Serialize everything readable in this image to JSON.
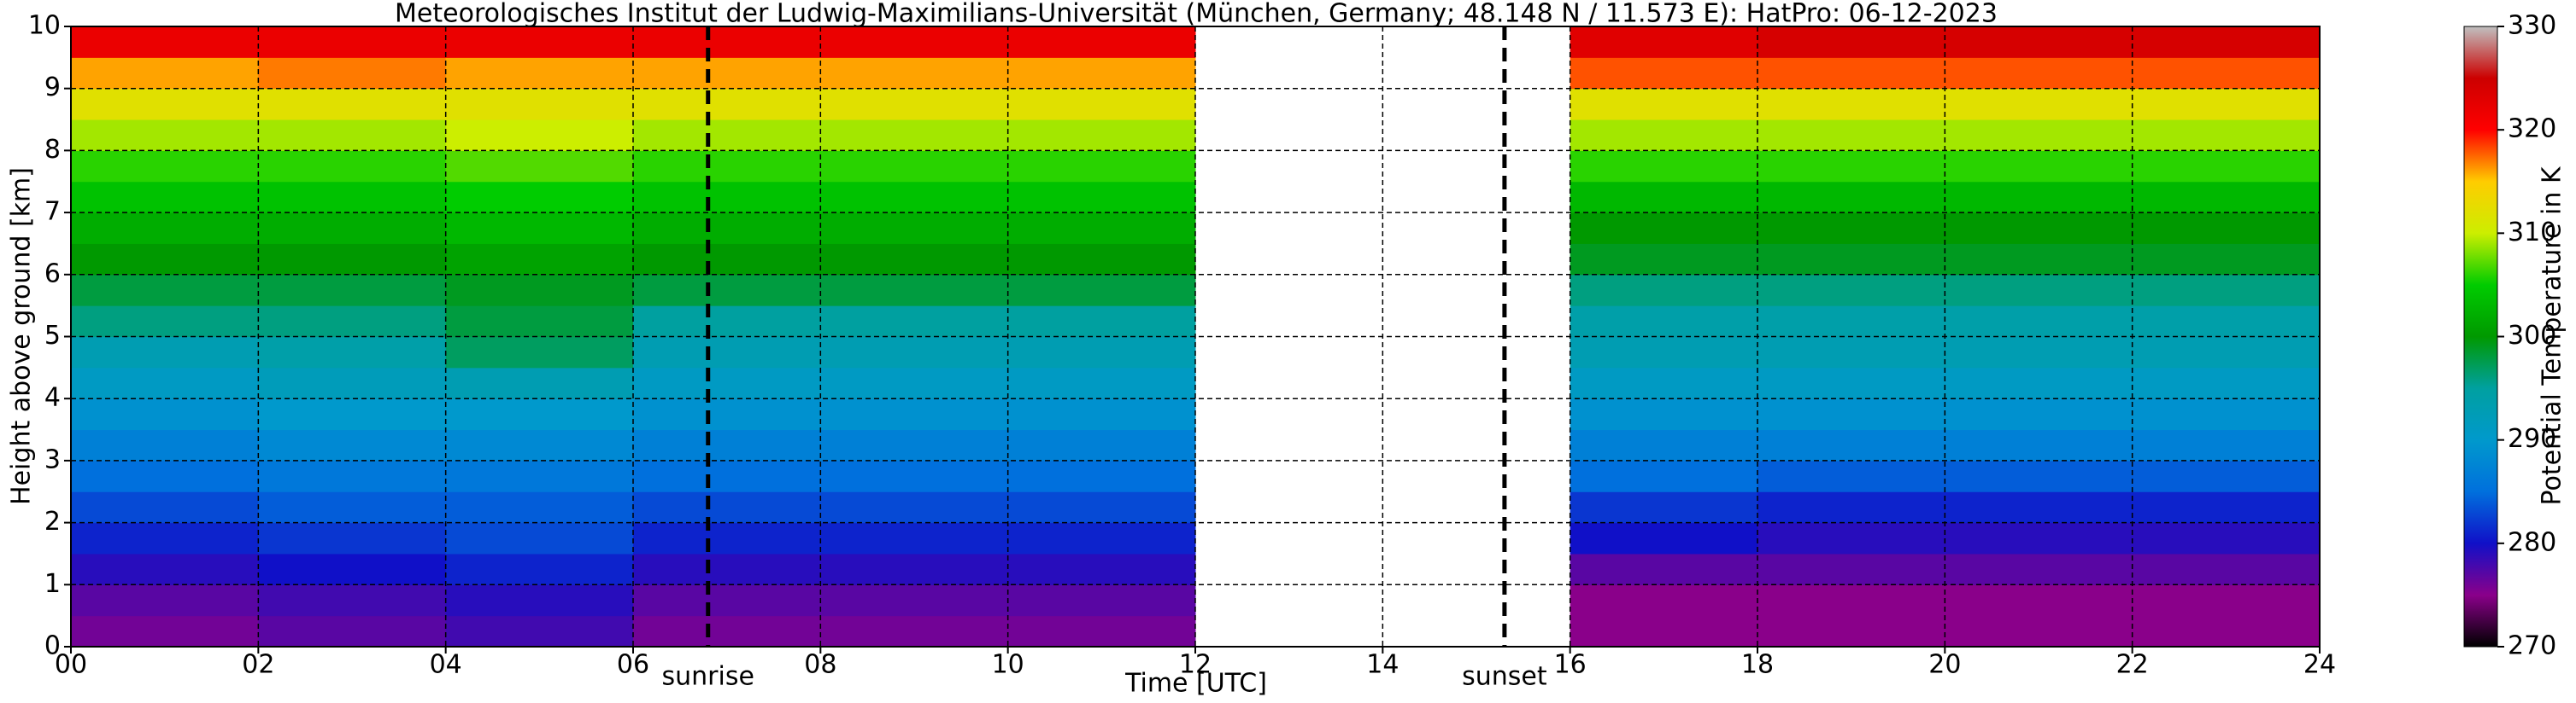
{
  "chart_data": {
    "type": "heatmap",
    "title": "Meteorologisches Institut der Ludwig-Maximilians-Universität (München, Germany; 48.148 N / 11.573 E):    HatPro: 06-12-2023",
    "x_label": "Time [UTC]",
    "y_label": "Height above ground [km]",
    "colorbar_label": "Potential Temperature in K",
    "xbins": [
      0,
      2,
      4,
      6,
      8,
      10,
      12,
      14,
      16,
      18,
      20,
      22,
      24
    ],
    "ybins": [
      0,
      0.5,
      1,
      1.5,
      2,
      2.5,
      3,
      3.5,
      4,
      4.5,
      5,
      5.5,
      6,
      6.5,
      7,
      7.5,
      8,
      8.5,
      9,
      9.5,
      10
    ],
    "z": [
      [
        276,
        277,
        278,
        276,
        276,
        276,
        null,
        null,
        275,
        275,
        275,
        275
      ],
      [
        277,
        278,
        279,
        277,
        277,
        277,
        null,
        null,
        275,
        275,
        275,
        275
      ],
      [
        279,
        280,
        281,
        279,
        279,
        279,
        null,
        null,
        277,
        277,
        277,
        277
      ],
      [
        281,
        282,
        283,
        281,
        281,
        281,
        null,
        null,
        280,
        279,
        279,
        279
      ],
      [
        283,
        284,
        284,
        283,
        283,
        283,
        null,
        null,
        282,
        281,
        281,
        281
      ],
      [
        285,
        286,
        286,
        285,
        285,
        285,
        null,
        null,
        285,
        284,
        284,
        284
      ],
      [
        287,
        288,
        288,
        287,
        287,
        287,
        null,
        null,
        287,
        287,
        287,
        287
      ],
      [
        289,
        290,
        290,
        289,
        289,
        289,
        null,
        null,
        289,
        289,
        289,
        289
      ],
      [
        291,
        292,
        293,
        291,
        291,
        291,
        null,
        null,
        291,
        291,
        291,
        291
      ],
      [
        293,
        294,
        297,
        293,
        293,
        293,
        null,
        null,
        293,
        293,
        293,
        293
      ],
      [
        296,
        296,
        298,
        295,
        295,
        295,
        null,
        null,
        294,
        294,
        294,
        294
      ],
      [
        298,
        298,
        299,
        298,
        298,
        298,
        null,
        null,
        296,
        296,
        296,
        296
      ],
      [
        300,
        300,
        301,
        300,
        300,
        300,
        null,
        null,
        299,
        299,
        299,
        299
      ],
      [
        302,
        302,
        303,
        302,
        302,
        302,
        null,
        null,
        300,
        300,
        300,
        300
      ],
      [
        304,
        304,
        305,
        304,
        304,
        304,
        null,
        null,
        303,
        303,
        303,
        303
      ],
      [
        306,
        306,
        307,
        306,
        306,
        306,
        null,
        null,
        306,
        306,
        306,
        306
      ],
      [
        309,
        309,
        310,
        309,
        309,
        309,
        null,
        null,
        309,
        309,
        309,
        309
      ],
      [
        312,
        312,
        312,
        312,
        312,
        312,
        null,
        null,
        312,
        312,
        312,
        312
      ],
      [
        316,
        317,
        316,
        316,
        316,
        316,
        null,
        null,
        318,
        318,
        318,
        318
      ],
      [
        322,
        322,
        322,
        322,
        322,
        322,
        null,
        null,
        323,
        324,
        324,
        324
      ]
    ],
    "xlim": [
      0,
      24
    ],
    "ylim": [
      0,
      10
    ],
    "zlim": [
      270,
      330
    ],
    "xticks": [
      {
        "value": 0,
        "label": "00"
      },
      {
        "value": 2,
        "label": "02"
      },
      {
        "value": 4,
        "label": "04"
      },
      {
        "value": 6,
        "label": "06"
      },
      {
        "value": 8,
        "label": "08"
      },
      {
        "value": 10,
        "label": "10"
      },
      {
        "value": 12,
        "label": "12"
      },
      {
        "value": 14,
        "label": "14"
      },
      {
        "value": 16,
        "label": "16"
      },
      {
        "value": 18,
        "label": "18"
      },
      {
        "value": 20,
        "label": "20"
      },
      {
        "value": 22,
        "label": "22"
      },
      {
        "value": 24,
        "label": "24"
      }
    ],
    "yticks": [
      0,
      1,
      2,
      3,
      4,
      5,
      6,
      7,
      8,
      9,
      10
    ],
    "zticks": [
      270,
      280,
      290,
      300,
      310,
      320,
      330
    ],
    "colorscale": [
      "#000000",
      "#8a008a",
      "#1010c8",
      "#0070dd",
      "#0099cc",
      "#00a0a0",
      "#009900",
      "#00cc00",
      "#ccee00",
      "#ffcc00",
      "#ff0000",
      "#cc0000",
      "#c0c0c0"
    ],
    "grid": true,
    "vlines": [
      {
        "x": 6.8,
        "label": "sunrise"
      },
      {
        "x": 15.3,
        "label": "sunset"
      }
    ]
  }
}
